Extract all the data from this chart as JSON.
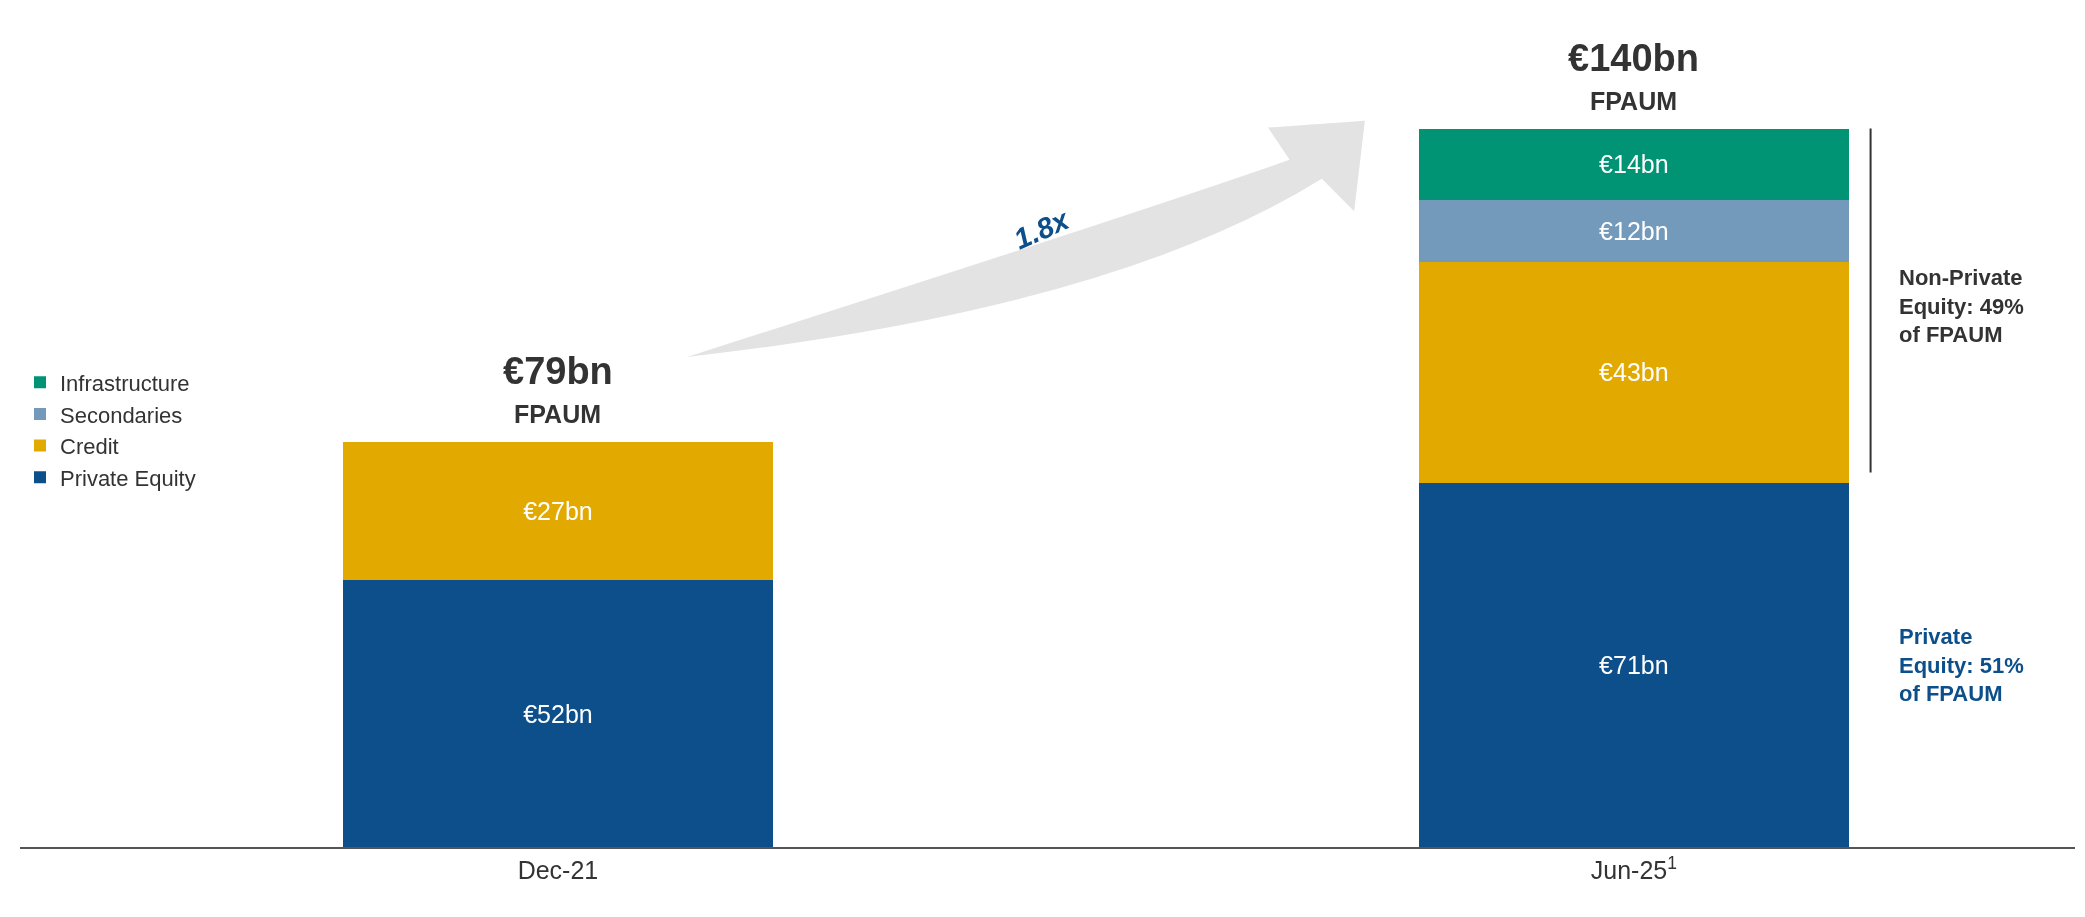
{
  "chart_data": {
    "type": "bar",
    "stacked": true,
    "categories": [
      "Dec-21",
      "Jun-25$^{1}$"
    ],
    "series": [
      {
        "name": "Private Equity",
        "color": "#0d4f8b",
        "values": [
          52,
          71
        ],
        "value_labels": [
          "€52bn",
          "€71bn"
        ]
      },
      {
        "name": "Credit",
        "color": "#e2a900",
        "values": [
          27,
          43
        ],
        "value_labels": [
          "€27bn",
          "€43bn"
        ]
      },
      {
        "name": "Secondaries",
        "color": "#7399bb",
        "values": [
          null,
          12
        ],
        "value_labels": [
          null,
          "€12bn"
        ]
      },
      {
        "name": "Infrastructure",
        "color": "#009474",
        "values": [
          null,
          14
        ],
        "value_labels": [
          null,
          "€14bn"
        ]
      }
    ],
    "totals": [
      "€79bn\nFPAUM",
      "€140bn\nFPAUM"
    ],
    "annotations": [
      "1.8x",
      "Non-Private Equity: 49% of FPAUM",
      "Private Equity: 51% of FPAUM"
    ],
    "legend": "left"
  }
}
